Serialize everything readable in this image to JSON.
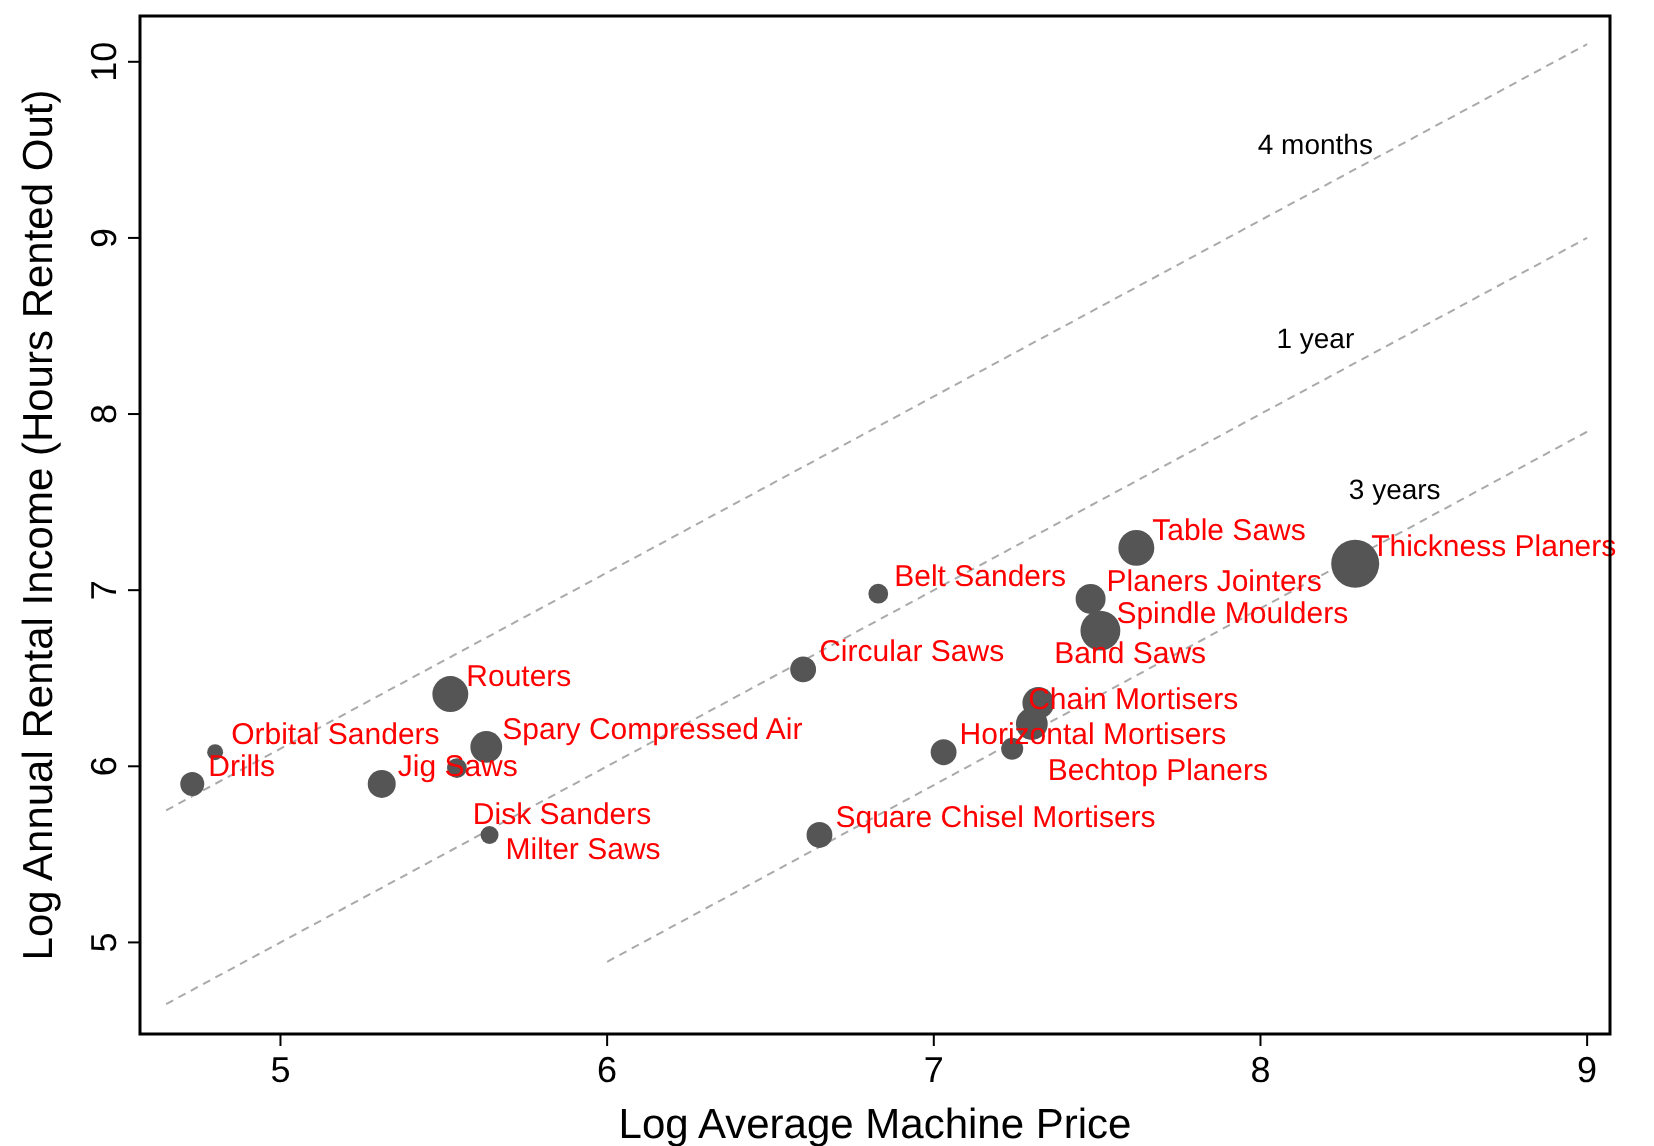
{
  "chart_data": {
    "type": "bubble",
    "xlabel": "Log Average Machine Price",
    "ylabel": "Log Annual Rental Income (Hours Rented Out)",
    "xlim": [
      4.57,
      9.07
    ],
    "ylim": [
      4.48,
      10.26
    ],
    "xticks": [
      5,
      6,
      7,
      8,
      9
    ],
    "yticks": [
      5,
      6,
      7,
      8,
      9,
      10
    ],
    "grid": false,
    "legend": false,
    "series": [
      {
        "name": "4 months",
        "type": "line",
        "color": "#aaaaaa",
        "line_style": "dashed",
        "marker": "none",
        "x": [
          4.65,
          9
        ],
        "values": [
          5.75,
          10.1
        ]
      },
      {
        "name": "1 year",
        "type": "line",
        "color": "#aaaaaa",
        "line_style": "dashed",
        "marker": "none",
        "x": [
          4.65,
          9
        ],
        "values": [
          4.65,
          9
        ]
      },
      {
        "name": "3 years",
        "type": "line",
        "color": "#aaaaaa",
        "line_style": "dashed",
        "marker": "none",
        "x": [
          6,
          9
        ],
        "values": [
          4.89,
          7.9
        ]
      },
      {
        "color": "#555555",
        "marker": "circle",
        "x": [
          4.73,
          4.8,
          5.31,
          5.52,
          5.63,
          5.54,
          5.64,
          6.6,
          6.83,
          6.65,
          7.03,
          7.24,
          7.3,
          7.32,
          7.51,
          7.48,
          7.62,
          8.29
        ],
        "values": [
          5.9,
          6.08,
          5.9,
          6.41,
          6.11,
          5.99,
          5.61,
          6.55,
          6.98,
          5.61,
          6.08,
          6.1,
          6.24,
          6.36,
          6.77,
          6.95,
          7.24,
          7.15
        ],
        "sizes": [
          0.25,
          0.11,
          0.34,
          0.56,
          0.44,
          0.17,
          0.14,
          0.29,
          0.17,
          0.29,
          0.29,
          0.21,
          0.44,
          0.44,
          0.69,
          0.39,
          0.56,
          1
        ]
      }
    ],
    "annotations": [
      {
        "text": "Drills",
        "x": 4.73,
        "y": 5.9
      },
      {
        "text": "Orbital Sanders",
        "x": 4.8,
        "y": 6.08
      },
      {
        "text": "Jig Saws",
        "x": 5.31,
        "y": 5.9
      },
      {
        "text": "Routers",
        "x": 5.52,
        "y": 6.41
      },
      {
        "text": "Spary Compressed Air",
        "x": 5.63,
        "y": 6.11
      },
      {
        "text": "Disk Sanders",
        "x": 5.54,
        "y": 5.99
      },
      {
        "text": "Milter Saws",
        "x": 5.64,
        "y": 5.61
      },
      {
        "text": "Circular Saws",
        "x": 6.6,
        "y": 6.55
      },
      {
        "text": "Belt Sanders",
        "x": 6.83,
        "y": 6.98
      },
      {
        "text": "Square Chisel Mortisers",
        "x": 6.65,
        "y": 5.61
      },
      {
        "text": "Horizontal Mortisers",
        "x": 7.03,
        "y": 6.08
      },
      {
        "text": "Chain Mortisers",
        "x": 7.24,
        "y": 6.1
      },
      {
        "text": "Bechtop Planers",
        "x": 7.3,
        "y": 6.24
      },
      {
        "text": "Band Saws",
        "x": 7.32,
        "y": 6.36
      },
      {
        "text": "Spindle Moulders",
        "x": 7.51,
        "y": 6.77
      },
      {
        "text": "Planers Jointers",
        "x": 7.48,
        "y": 6.95
      },
      {
        "text": "Table Saws",
        "x": 7.62,
        "y": 7.24
      },
      {
        "text": "Thickness Planers",
        "x": 8.29,
        "y": 7.15
      }
    ]
  }
}
